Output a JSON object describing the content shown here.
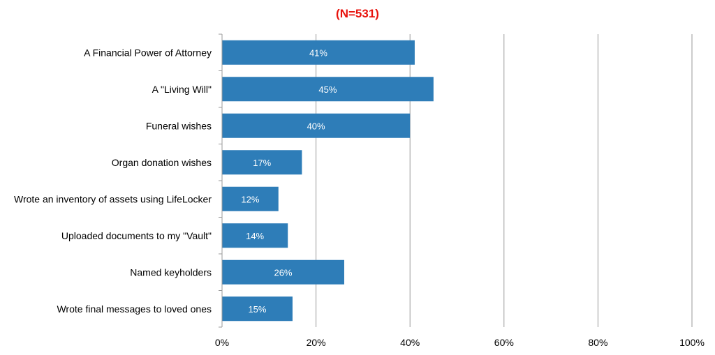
{
  "colors": {
    "bar": "#2e7db8",
    "title": "#e8120c",
    "grid": "#9a9a9a",
    "text": "#000000",
    "bar_label": "#ffffff"
  },
  "chart_data": {
    "type": "bar",
    "orientation": "horizontal",
    "title": "(N=531)",
    "categories": [
      "A Financial Power of Attorney",
      "A \"Living Will\"",
      "Funeral wishes",
      "Organ donation wishes",
      "Wrote an inventory of assets using LifeLocker",
      "Uploaded documents to my \"Vault\"",
      "Named keyholders",
      "Wrote final messages to loved ones"
    ],
    "values": [
      41,
      45,
      40,
      17,
      12,
      14,
      26,
      15
    ],
    "value_labels": [
      "41%",
      "45%",
      "40%",
      "17%",
      "12%",
      "14%",
      "26%",
      "15%"
    ],
    "xlim": [
      0,
      100
    ],
    "xticks": [
      0,
      20,
      40,
      60,
      80,
      100
    ],
    "xtick_labels": [
      "0%",
      "20%",
      "40%",
      "60%",
      "80%",
      "100%"
    ],
    "grid": true,
    "legend": "none"
  }
}
